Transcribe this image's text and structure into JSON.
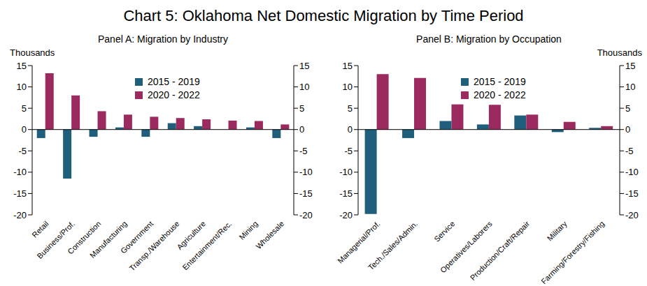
{
  "title": "Chart 5: Oklahoma Net Domestic Migration by Time Period",
  "chart_data": [
    {
      "type": "bar",
      "title": "Panel A: Migration by Industry",
      "y_label": "Thousands",
      "categories": [
        "Retail",
        "Business/Prof.",
        "Construction",
        "Manufacturing",
        "Government",
        "Transp./Warehouse",
        "Agriculture",
        "Entertainment/Rec.",
        "Mining",
        "Wholesale"
      ],
      "series": [
        {
          "name": "2015 - 2019",
          "color": "#1f5f7c",
          "values": [
            -2,
            -11.5,
            -1.7,
            0.5,
            -1.7,
            1.5,
            0.8,
            0,
            0.5,
            -2
          ]
        },
        {
          "name": "2020 - 2022",
          "color": "#9b2b5e",
          "values": [
            13.2,
            8,
            4.3,
            3.5,
            3,
            2.7,
            2.4,
            2.1,
            2,
            1.2
          ]
        }
      ],
      "ylim": [
        -20,
        15
      ],
      "yticks": [
        -20,
        -15,
        -10,
        -5,
        0,
        5,
        10,
        15
      ],
      "y2lim": [
        -20,
        15
      ],
      "y2ticks": [
        -20,
        -15,
        -10,
        -5,
        0,
        5,
        10,
        15
      ],
      "legend": "upper center",
      "grid": false
    },
    {
      "type": "bar",
      "title": "Panel B: Migration by Occupation",
      "y2_label": "Thousands",
      "categories": [
        "Managerial/Prof.",
        "Tech./Sales/Admin.",
        "Service",
        "Operatives/Laborers",
        "Production/Craft/Repair",
        "Military",
        "Farming/Forestry/Fishing"
      ],
      "series": [
        {
          "name": "2015 - 2019",
          "color": "#1f5f7c",
          "values": [
            -19.8,
            -2,
            2,
            1.2,
            3.3,
            -0.6,
            0.4
          ]
        },
        {
          "name": "2020 - 2022",
          "color": "#9b2b5e",
          "values": [
            13,
            12.1,
            5.9,
            5.8,
            3.5,
            1.8,
            0.8
          ]
        }
      ],
      "ylim": [
        -20,
        15
      ],
      "yticks": [
        -20,
        -15,
        -10,
        -5,
        0,
        5,
        10,
        15
      ],
      "y2lim": [
        -20,
        15
      ],
      "y2ticks": [
        -20,
        -15,
        -10,
        -5,
        0,
        5,
        10,
        15
      ],
      "legend": "upper center",
      "grid": false
    }
  ]
}
